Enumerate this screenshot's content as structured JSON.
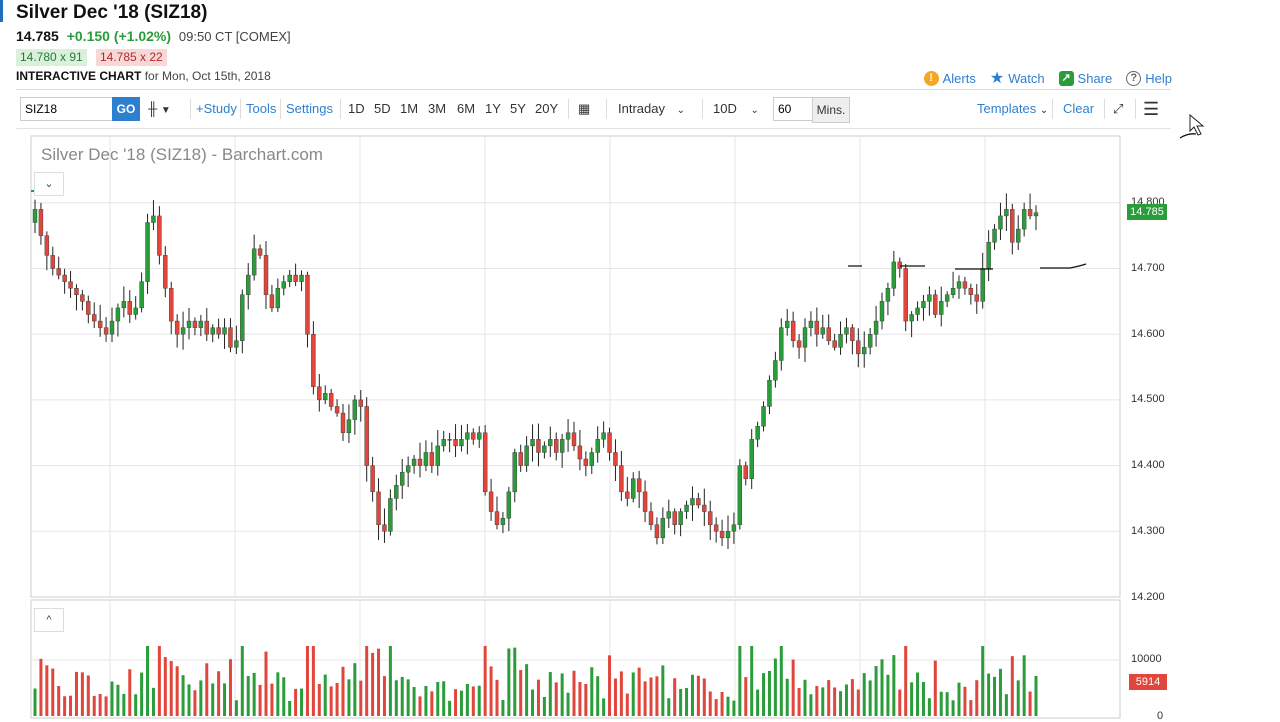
{
  "header": {
    "title": "Silver Dec '18 (SIZ18)",
    "price": "14.785",
    "change": "+0.150 (+1.02%)",
    "time_exchange": "09:50 CT [COMEX]",
    "bid": "14.780 x 91",
    "ask": "14.785 x 22",
    "chart_label": "INTERACTIVE CHART",
    "date_label": "for Mon, Oct 15th, 2018",
    "links": {
      "alerts": "Alerts",
      "watch": "Watch",
      "share": "Share",
      "help": "Help"
    }
  },
  "toolbar": {
    "symbol": "SIZ18",
    "go": "GO",
    "study": "+Study",
    "tools": "Tools",
    "settings": "Settings",
    "periods": [
      "1D",
      "5D",
      "1M",
      "3M",
      "6M",
      "1Y",
      "5Y",
      "20Y"
    ],
    "intraday": "Intraday",
    "range": "10D",
    "interval": "60",
    "mins": "Mins.",
    "templates": "Templates",
    "clear": "Clear"
  },
  "chart": {
    "title": "Silver Dec '18 (SIZ18) - Barchart.com",
    "last_price_tag": "14.785",
    "volume_tag": "5914",
    "price_ticks": [
      "14.800",
      "14.700",
      "14.600",
      "14.500",
      "14.400",
      "14.300",
      "14.200"
    ],
    "volume_ticks": [
      "10000",
      "0"
    ],
    "up_color": "#2a9d3a",
    "down_color": "#e0463b"
  },
  "chart_data": {
    "type": "candlestick",
    "title": "Silver Dec '18 (SIZ18) - Barchart.com",
    "interval": "60 Mins.",
    "ylim": [
      14.2,
      14.8
    ],
    "closes": [
      14.79,
      14.75,
      14.72,
      14.7,
      14.69,
      14.68,
      14.67,
      14.66,
      14.65,
      14.63,
      14.62,
      14.61,
      14.6,
      14.62,
      14.64,
      14.65,
      14.63,
      14.64,
      14.68,
      14.77,
      14.78,
      14.72,
      14.67,
      14.62,
      14.6,
      14.61,
      14.62,
      14.61,
      14.62,
      14.6,
      14.61,
      14.6,
      14.61,
      14.58,
      14.59,
      14.66,
      14.69,
      14.73,
      14.72,
      14.66,
      14.64,
      14.67,
      14.68,
      14.69,
      14.68,
      14.69,
      14.6,
      14.52,
      14.5,
      14.51,
      14.49,
      14.48,
      14.45,
      14.47,
      14.5,
      14.49,
      14.4,
      14.36,
      14.31,
      14.3,
      14.35,
      14.37,
      14.39,
      14.4,
      14.41,
      14.4,
      14.42,
      14.4,
      14.43,
      14.44,
      14.44,
      14.43,
      14.44,
      14.45,
      14.44,
      14.45,
      14.36,
      14.33,
      14.31,
      14.32,
      14.36,
      14.42,
      14.4,
      14.43,
      14.44,
      14.42,
      14.43,
      14.44,
      14.42,
      14.44,
      14.45,
      14.43,
      14.41,
      14.4,
      14.42,
      14.44,
      14.45,
      14.42,
      14.4,
      14.36,
      14.35,
      14.38,
      14.36,
      14.33,
      14.31,
      14.29,
      14.32,
      14.33,
      14.31,
      14.33,
      14.34,
      14.35,
      14.34,
      14.33,
      14.31,
      14.3,
      14.29,
      14.3,
      14.31,
      14.4,
      14.38,
      14.44,
      14.46,
      14.49,
      14.53,
      14.56,
      14.61,
      14.62,
      14.59,
      14.58,
      14.61,
      14.62,
      14.6,
      14.61,
      14.59,
      14.58,
      14.6,
      14.61,
      14.59,
      14.57,
      14.58,
      14.6,
      14.62,
      14.65,
      14.67,
      14.71,
      14.7,
      14.62,
      14.63,
      14.64,
      14.65,
      14.66,
      14.63,
      14.65,
      14.66,
      14.67,
      14.68,
      14.67,
      14.66,
      14.65,
      14.7,
      14.74,
      14.76,
      14.78,
      14.79,
      14.74,
      14.76,
      14.79,
      14.78,
      14.785
    ],
    "volume_ylim": [
      0,
      10000
    ],
    "last_volume": 5914
  }
}
